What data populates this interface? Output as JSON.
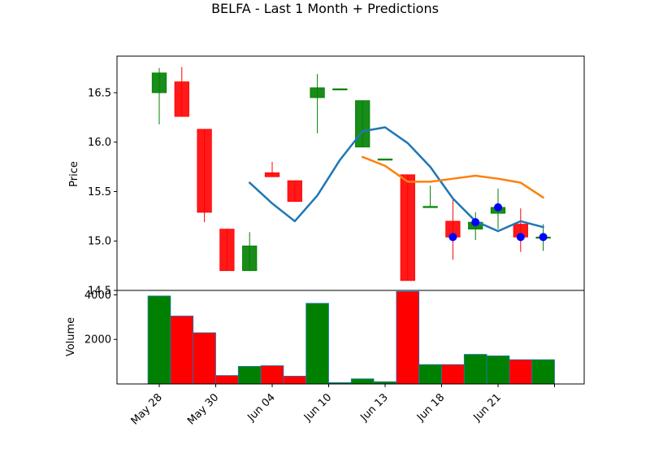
{
  "chart_data": {
    "type": "candlestick",
    "title": "BELFA - Last 1 Month + Predictions",
    "price_ylabel": "Price",
    "volume_ylabel": "Volume",
    "price_ylim": [
      14.5,
      16.87
    ],
    "volume_ylim": [
      0,
      4200
    ],
    "price_yticks": [
      14.5,
      15.0,
      15.5,
      16.0,
      16.5
    ],
    "volume_yticks": [
      2000,
      4000
    ],
    "xtick_labels": [
      "May 28",
      "May 30",
      "Jun 04",
      "Jun 10",
      "Jun 13",
      "Jun 18",
      "Jun 21",
      ""
    ],
    "xtick_positions": [
      0,
      2.5,
      5,
      7.5,
      10,
      12.5,
      15,
      17.5
    ],
    "candles": [
      {
        "x": 0,
        "open": 16.5,
        "high": 16.75,
        "low": 16.18,
        "close": 16.7,
        "volume": 3950
      },
      {
        "x": 1,
        "open": 16.61,
        "high": 16.76,
        "low": 16.26,
        "close": 16.26,
        "volume": 3050
      },
      {
        "x": 2,
        "open": 16.13,
        "high": 16.13,
        "low": 15.19,
        "close": 15.29,
        "volume": 2300
      },
      {
        "x": 3,
        "open": 15.12,
        "high": 15.12,
        "low": 14.7,
        "close": 14.7,
        "volume": 380
      },
      {
        "x": 4,
        "open": 14.7,
        "high": 15.09,
        "low": 14.7,
        "close": 14.95,
        "volume": 790
      },
      {
        "x": 5,
        "open": 15.69,
        "high": 15.8,
        "low": 15.65,
        "close": 15.65,
        "volume": 820
      },
      {
        "x": 6,
        "open": 15.61,
        "high": 15.61,
        "low": 15.4,
        "close": 15.4,
        "volume": 350
      },
      {
        "x": 7,
        "open": 16.45,
        "high": 16.69,
        "low": 16.09,
        "close": 16.55,
        "volume": 3620
      },
      {
        "x": 8,
        "open": 16.54,
        "high": 16.54,
        "low": 16.54,
        "close": 16.54,
        "volume": 60
      },
      {
        "x": 9,
        "open": 15.95,
        "high": 16.42,
        "low": 15.95,
        "close": 16.42,
        "volume": 230
      },
      {
        "x": 10,
        "open": 15.83,
        "high": 15.83,
        "low": 15.83,
        "close": 15.83,
        "volume": 100
      },
      {
        "x": 11,
        "open": 15.67,
        "high": 15.67,
        "low": 14.6,
        "close": 14.6,
        "volume": 4150
      },
      {
        "x": 12,
        "open": 15.35,
        "high": 15.56,
        "low": 15.35,
        "close": 15.35,
        "volume": 870
      },
      {
        "x": 13,
        "open": 15.2,
        "high": 15.43,
        "low": 14.81,
        "close": 15.04,
        "volume": 870
      },
      {
        "x": 14,
        "open": 15.12,
        "high": 15.29,
        "low": 15.01,
        "close": 15.19,
        "volume": 1330
      },
      {
        "x": 15,
        "open": 15.28,
        "high": 15.53,
        "low": 15.12,
        "close": 15.34,
        "volume": 1260
      },
      {
        "x": 16,
        "open": 15.17,
        "high": 15.33,
        "low": 14.89,
        "close": 15.04,
        "volume": 1090
      },
      {
        "x": 17,
        "open": 15.04,
        "high": 15.17,
        "low": 14.9,
        "close": 15.04,
        "volume": 1090
      }
    ],
    "series": [
      {
        "type": "line",
        "color": "#1f77b4",
        "x": [
          4,
          5,
          6,
          7,
          8,
          9,
          10,
          11,
          12,
          13,
          14,
          15,
          16,
          17
        ],
        "values": [
          15.59,
          15.38,
          15.2,
          15.46,
          15.82,
          16.11,
          16.15,
          15.99,
          15.75,
          15.43,
          15.2,
          15.1,
          15.2,
          15.14
        ]
      },
      {
        "type": "line",
        "color": "#ff7f0e",
        "x": [
          9,
          10,
          11,
          12,
          13,
          14,
          15,
          16,
          17
        ],
        "values": [
          15.85,
          15.76,
          15.6,
          15.6,
          15.63,
          15.66,
          15.63,
          15.59,
          15.44
        ]
      },
      {
        "type": "scatter",
        "color": "#0000ff",
        "x": [
          13,
          14,
          15,
          16,
          17
        ],
        "values": [
          15.04,
          15.19,
          15.34,
          15.04,
          15.04
        ]
      }
    ],
    "colors": {
      "up": "#008000",
      "down": "#ff0000",
      "volume_edge": "#1f77b4"
    },
    "grid": false
  }
}
